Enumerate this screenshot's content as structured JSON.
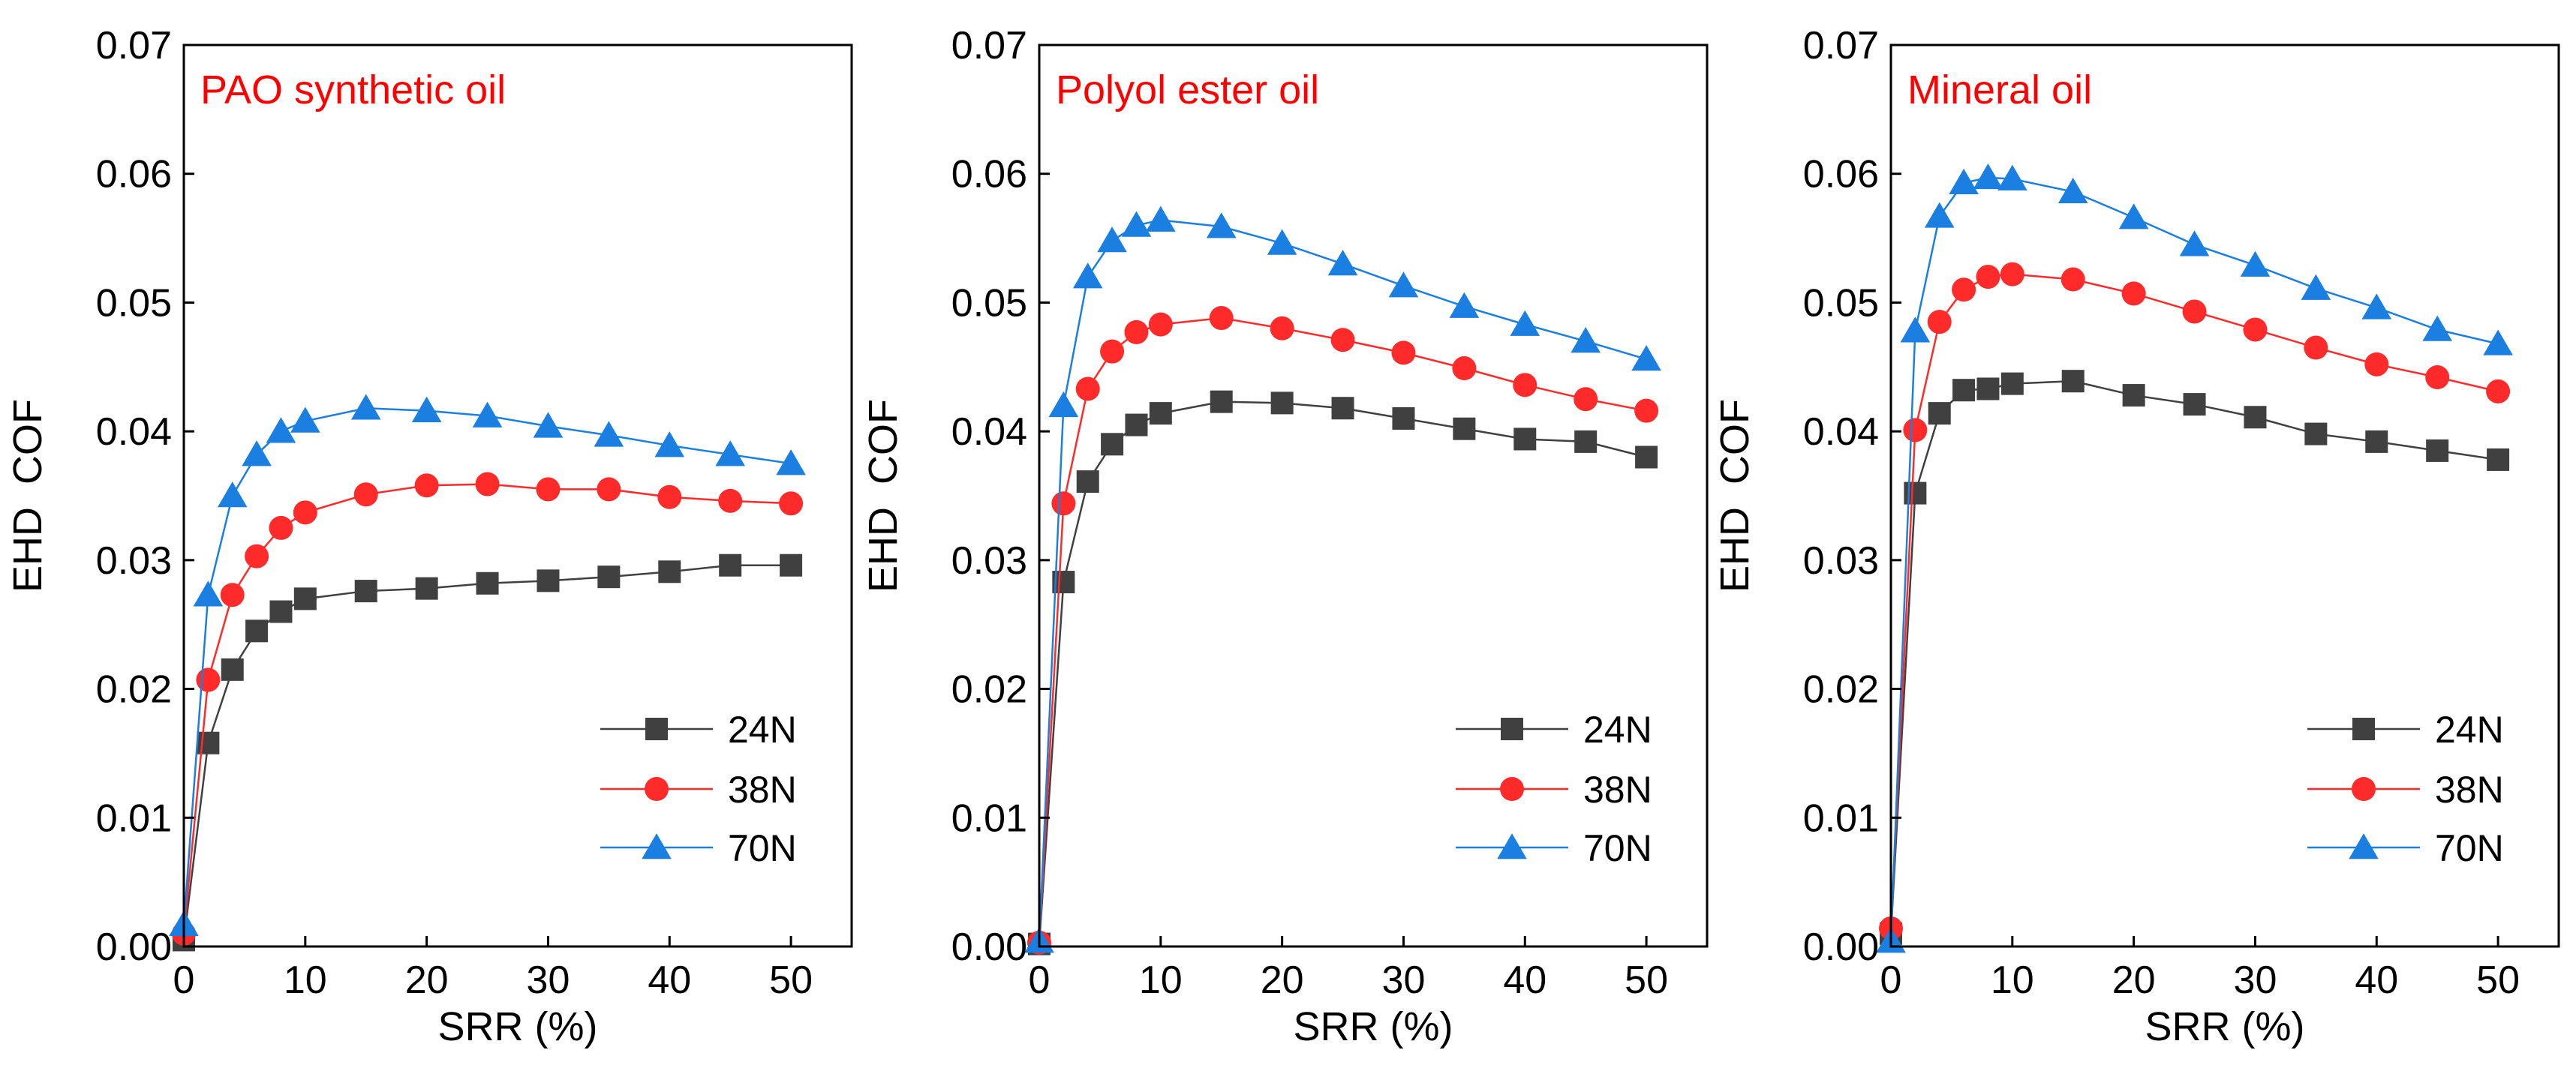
{
  "chart_data": [
    {
      "type": "line",
      "title": "PAO synthetic oil",
      "xlabel": "SRR (%)",
      "ylabel": "EHD  COF",
      "xlim": [
        0,
        55
      ],
      "ylim": [
        0,
        0.07
      ],
      "xticks": [
        0,
        10,
        20,
        30,
        40,
        50
      ],
      "yticks": [
        0.0,
        0.01,
        0.02,
        0.03,
        0.04,
        0.05,
        0.06,
        0.07
      ],
      "xtick_labels": [
        "0",
        "10",
        "20",
        "30",
        "40",
        "50"
      ],
      "ytick_labels": [
        "0.00",
        "0.01",
        "0.02",
        "0.03",
        "0.04",
        "0.05",
        "0.06",
        "0.07"
      ],
      "x": [
        0,
        2,
        4,
        6,
        8,
        10,
        15,
        20,
        25,
        30,
        35,
        40,
        45,
        50
      ],
      "legend_position": "bottom-right",
      "grid": false,
      "series": [
        {
          "name": "24N",
          "color": "#404040",
          "marker": "square",
          "values": [
            0.0005,
            0.0158,
            0.0215,
            0.0245,
            0.026,
            0.027,
            0.0276,
            0.0278,
            0.0282,
            0.0284,
            0.0287,
            0.0291,
            0.0296,
            0.0296
          ]
        },
        {
          "name": "38N",
          "color": "#ff2a2a",
          "marker": "circle",
          "values": [
            0.001,
            0.0207,
            0.0273,
            0.0303,
            0.0325,
            0.0337,
            0.0351,
            0.0358,
            0.0359,
            0.0355,
            0.0355,
            0.0349,
            0.0346,
            0.0344
          ]
        },
        {
          "name": "70N",
          "color": "#1a7fe0",
          "marker": "triangle",
          "values": [
            0.0017,
            0.0273,
            0.035,
            0.0382,
            0.04,
            0.0408,
            0.0418,
            0.0416,
            0.0412,
            0.0404,
            0.0397,
            0.0389,
            0.0382,
            0.0375
          ]
        }
      ]
    },
    {
      "type": "line",
      "title": "Polyol ester oil",
      "xlabel": "SRR (%)",
      "ylabel": "EHD  COF",
      "xlim": [
        0,
        55
      ],
      "ylim": [
        0,
        0.07
      ],
      "xticks": [
        0,
        10,
        20,
        30,
        40,
        50
      ],
      "yticks": [
        0.0,
        0.01,
        0.02,
        0.03,
        0.04,
        0.05,
        0.06,
        0.07
      ],
      "xtick_labels": [
        "0",
        "10",
        "20",
        "30",
        "40",
        "50"
      ],
      "ytick_labels": [
        "0.00",
        "0.01",
        "0.02",
        "0.03",
        "0.04",
        "0.05",
        "0.06",
        "0.07"
      ],
      "x": [
        0,
        2,
        4,
        6,
        8,
        10,
        15,
        20,
        25,
        30,
        35,
        40,
        45,
        50
      ],
      "legend_position": "bottom-right",
      "grid": false,
      "series": [
        {
          "name": "24N",
          "color": "#404040",
          "marker": "square",
          "values": [
            0.0002,
            0.0283,
            0.0361,
            0.039,
            0.0405,
            0.0414,
            0.0423,
            0.0422,
            0.0418,
            0.041,
            0.0402,
            0.0394,
            0.0392,
            0.038
          ]
        },
        {
          "name": "38N",
          "color": "#ff2a2a",
          "marker": "circle",
          "values": [
            0.0003,
            0.0344,
            0.0433,
            0.0462,
            0.0477,
            0.0483,
            0.0488,
            0.048,
            0.0471,
            0.0461,
            0.0449,
            0.0436,
            0.0425,
            0.0416
          ]
        },
        {
          "name": "70N",
          "color": "#1a7fe0",
          "marker": "triangle",
          "values": [
            0.0004,
            0.042,
            0.052,
            0.0548,
            0.056,
            0.0564,
            0.0559,
            0.0546,
            0.053,
            0.0513,
            0.0497,
            0.0483,
            0.047,
            0.0456
          ]
        }
      ]
    },
    {
      "type": "line",
      "title": "Mineral oil",
      "xlabel": "SRR (%)",
      "ylabel": "EHD  COF",
      "xlim": [
        0,
        55
      ],
      "ylim": [
        0,
        0.07
      ],
      "xticks": [
        0,
        10,
        20,
        30,
        40,
        50
      ],
      "yticks": [
        0.0,
        0.01,
        0.02,
        0.03,
        0.04,
        0.05,
        0.06,
        0.07
      ],
      "xtick_labels": [
        "0",
        "10",
        "20",
        "30",
        "40",
        "50"
      ],
      "ytick_labels": [
        "0.00",
        "0.01",
        "0.02",
        "0.03",
        "0.04",
        "0.05",
        "0.06",
        "0.07"
      ],
      "x": [
        0,
        2,
        4,
        6,
        8,
        10,
        15,
        20,
        25,
        30,
        35,
        40,
        45,
        50
      ],
      "legend_position": "bottom-right",
      "grid": false,
      "series": [
        {
          "name": "24N",
          "color": "#404040",
          "marker": "square",
          "values": [
            0.001,
            0.0352,
            0.0414,
            0.0432,
            0.0433,
            0.0437,
            0.0439,
            0.0428,
            0.0421,
            0.0411,
            0.0398,
            0.0392,
            0.0385,
            0.0378
          ]
        },
        {
          "name": "38N",
          "color": "#ff2a2a",
          "marker": "circle",
          "values": [
            0.0014,
            0.0401,
            0.0485,
            0.051,
            0.052,
            0.0522,
            0.0518,
            0.0507,
            0.0493,
            0.0479,
            0.0465,
            0.0452,
            0.0442,
            0.0431
          ]
        },
        {
          "name": "70N",
          "color": "#1a7fe0",
          "marker": "triangle",
          "values": [
            0.0004,
            0.0478,
            0.0567,
            0.0593,
            0.0597,
            0.0596,
            0.0586,
            0.0566,
            0.0545,
            0.0529,
            0.0511,
            0.0496,
            0.0479,
            0.0468
          ]
        }
      ]
    }
  ]
}
